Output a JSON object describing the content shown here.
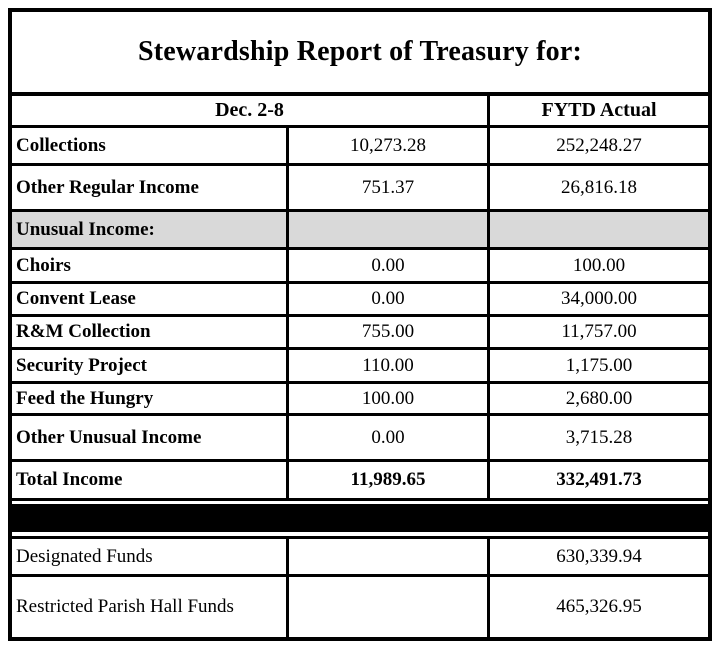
{
  "report": {
    "title": "Stewardship Report of Treasury for:",
    "header": {
      "period_label": "Dec. 2-8",
      "fytd_label": "FYTD Actual"
    },
    "rows": [
      {
        "label": "Collections",
        "week": "10,273.28",
        "fytd": "252,248.27"
      },
      {
        "label": "Other Regular Income",
        "week": "751.37",
        "fytd": "26,816.18"
      },
      {
        "label": "Unusual Income:",
        "week": "",
        "fytd": ""
      },
      {
        "label": "Choirs",
        "week": "0.00",
        "fytd": "100.00"
      },
      {
        "label": "Convent Lease",
        "week": "0.00",
        "fytd": "34,000.00"
      },
      {
        "label": "R&M Collection",
        "week": "755.00",
        "fytd": "11,757.00"
      },
      {
        "label": "Security Project",
        "week": "110.00",
        "fytd": "1,175.00"
      },
      {
        "label": "Feed the Hungry",
        "week": "100.00",
        "fytd": "2,680.00"
      },
      {
        "label": "Other Unusual Income",
        "week": "0.00",
        "fytd": "3,715.28"
      },
      {
        "label": "Total Income",
        "week": "11,989.65",
        "fytd": "332,491.73"
      }
    ],
    "funds_rows": [
      {
        "label": "Designated Funds",
        "week": "",
        "fytd": "630,339.94"
      },
      {
        "label": "Restricted Parish Hall Funds",
        "week": "",
        "fytd": "465,326.95"
      }
    ],
    "colors": {
      "border": "#000000",
      "section_row_bg": "#d9d9d9",
      "separator_bar": "#000000"
    }
  }
}
